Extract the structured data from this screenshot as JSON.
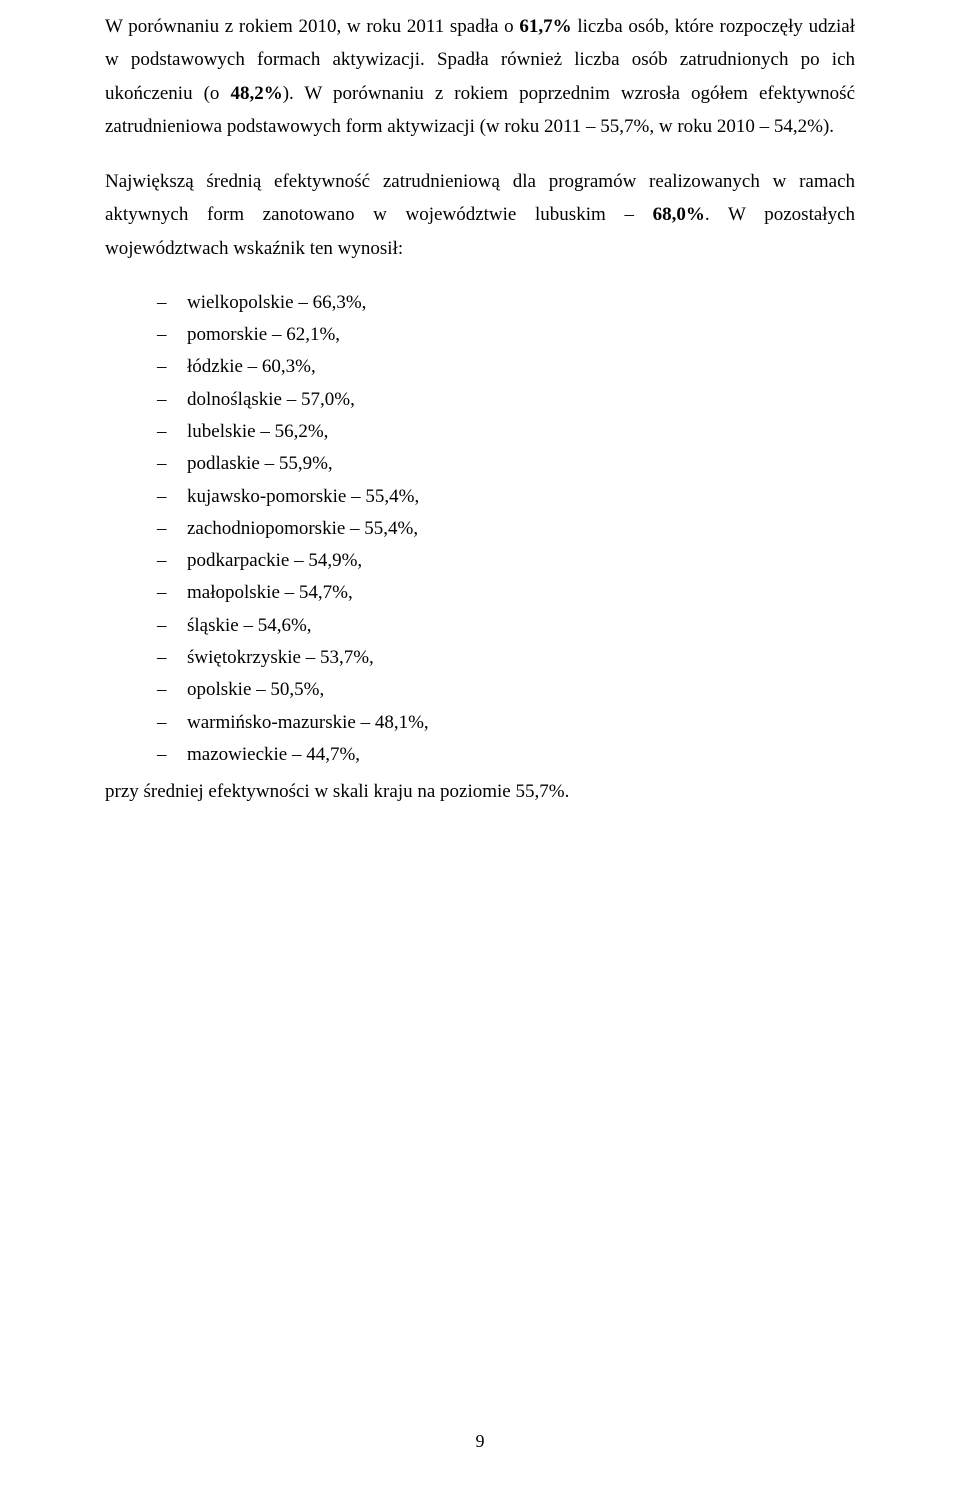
{
  "para1": {
    "pre_bold1": "W porównaniu z rokiem 2010, w roku 2011 spadła o ",
    "bold1": "61,7%",
    "post_bold1": " liczba osób, które rozpoczęły udział w podstawowych formach aktywizacji. Spadła również liczba osób zatrudnionych po ich ukończeniu (o ",
    "bold2": "48,2%",
    "post_bold2": "). W porównaniu z rokiem poprzednim wzrosła ogółem efektywność zatrudnieniowa podstawowych form aktywizacji (w roku 2011 – 55,7%, w roku 2010 – 54,2%)."
  },
  "para2": {
    "pre": "Największą średnią efektywność zatrudnieniową dla programów realizowanych w ramach aktywnych form zanotowano w województwie lubuskim – ",
    "bold": "68,0%",
    "post": ". W pozostałych województwach wskaźnik ten wynosił:"
  },
  "items": [
    "wielkopolskie – 66,3%,",
    "pomorskie – 62,1%,",
    "łódzkie – 60,3%,",
    "dolnośląskie – 57,0%,",
    "lubelskie – 56,2%,",
    "podlaskie – 55,9%,",
    "kujawsko-pomorskie – 55,4%,",
    "zachodniopomorskie – 55,4%,",
    "podkarpackie – 54,9%,",
    "małopolskie – 54,7%,",
    "śląskie – 54,6%,",
    "świętokrzyskie – 53,7%,",
    "opolskie – 50,5%,",
    "warmińsko-mazurskie – 48,1%,",
    "mazowieckie – 44,7%,"
  ],
  "closing": "przy średniej efektywności w skali kraju na poziomie 55,7%.",
  "page_number": "9"
}
